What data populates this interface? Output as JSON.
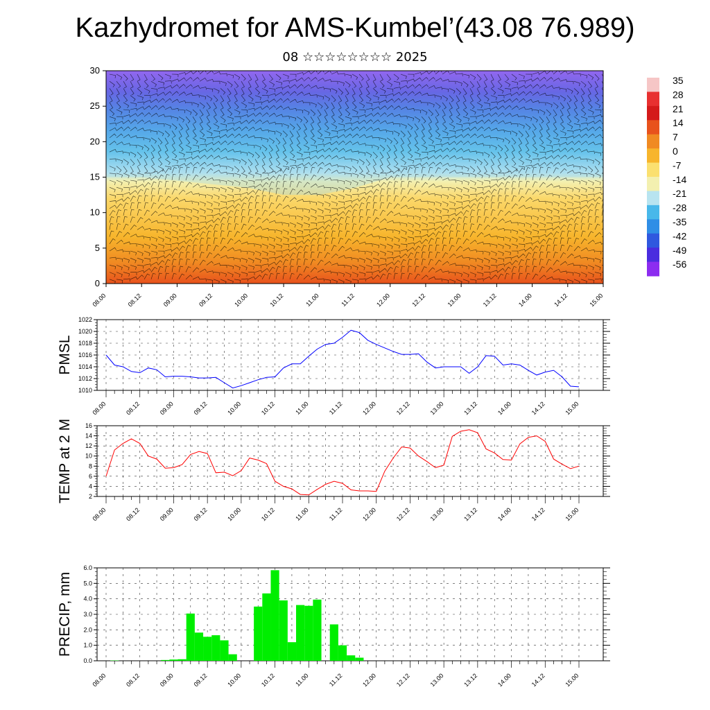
{
  "title": "Kazhydromet for AMS-Kumbel’(43.08 76.989)",
  "subtitle": "08 ☆☆☆☆☆☆☆☆ 2025",
  "colorbar": {
    "labels": [
      "35",
      "28",
      "21",
      "14",
      "7",
      "0",
      "-7",
      "-14",
      "-21",
      "-28",
      "-35",
      "-42",
      "-49",
      "-56"
    ],
    "colors": [
      "#f6c6c6",
      "#e83030",
      "#d41a1a",
      "#e8521c",
      "#f08a22",
      "#f7b52c",
      "#fbe070",
      "#f3f0b0",
      "#b8e4f0",
      "#48b8ea",
      "#2f8ee6",
      "#2f58df",
      "#4a2cdf",
      "#8c2cf0"
    ]
  },
  "time_ticks": [
    "08.00",
    "08.12",
    "09.00",
    "09.12",
    "10.00",
    "10.12",
    "11.00",
    "11.12",
    "12.00",
    "12.12",
    "13.00",
    "13.12",
    "14.00",
    "14.12",
    "15.00"
  ],
  "chart_data": [
    {
      "type": "heatmap",
      "name": "temperature-wind cross-section",
      "yticks": [
        0,
        5,
        10,
        15,
        20,
        25,
        30
      ],
      "ylim": [
        0,
        30
      ],
      "colorbar_range": [
        -56,
        35
      ],
      "freezing_level_approx_km": [
        15,
        15,
        14.5,
        14,
        13.5,
        12.5,
        12.5,
        13.5,
        15,
        15,
        15,
        15,
        15,
        15,
        15
      ]
    },
    {
      "type": "line",
      "ylabel": "PMSL",
      "ylim": [
        1010,
        1022
      ],
      "yticks": [
        "1022",
        "1020",
        "1018",
        "1016",
        "1014",
        "1012",
        "1010"
      ],
      "color": "#0000ff",
      "values": [
        1016,
        1014.3,
        1014,
        1013.2,
        1013,
        1013.8,
        1013.5,
        1012.3,
        1012.4,
        1012.4,
        1012.3,
        1012.1,
        1012.1,
        1012.2,
        1011.3,
        1010.4,
        1010.8,
        1011.3,
        1011.8,
        1012.2,
        1012.3,
        1013.8,
        1014.5,
        1014.5,
        1015.8,
        1017,
        1017.8,
        1018,
        1019,
        1020.2,
        1019.8,
        1018.5,
        1017.8,
        1017.2,
        1016.6,
        1016.1,
        1016.1,
        1016.2,
        1014.8,
        1013.8,
        1014,
        1014,
        1014,
        1012.9,
        1014,
        1015.9,
        1015.8,
        1014.3,
        1014.5,
        1014.3,
        1013.4,
        1012.6,
        1013.1,
        1013.4,
        1012.3,
        1010.7,
        1010.6
      ]
    },
    {
      "type": "line",
      "ylabel": "TEMP at 2 M",
      "ylim": [
        2,
        16
      ],
      "yticks": [
        "16",
        "14",
        "12",
        "10",
        "8",
        "6",
        "4",
        "2"
      ],
      "color": "#ff0000",
      "values": [
        6,
        11.2,
        12.5,
        13.4,
        12.5,
        10,
        9.4,
        7.6,
        7.7,
        8.3,
        10.3,
        10.9,
        10.5,
        6.7,
        6.8,
        6.1,
        7.1,
        9.6,
        9.2,
        8.5,
        5,
        4,
        3.5,
        2.4,
        2.3,
        3.4,
        4.4,
        5,
        4.6,
        3.3,
        3.1,
        3.1,
        3,
        7,
        9.6,
        11.8,
        11.6,
        10,
        8.9,
        7.7,
        8.2,
        13.9,
        14.9,
        15.2,
        14.6,
        11.4,
        10.6,
        9.3,
        9.2,
        12.4,
        13.7,
        14,
        12.9,
        9.4,
        8.4,
        7.5,
        8
      ]
    },
    {
      "type": "bar",
      "ylabel": "PRECIP, mm",
      "ylim": [
        0,
        6
      ],
      "yticks": [
        "6.0",
        "5.0",
        "4.0",
        "3.0",
        "2.0",
        "1.0",
        "0.0"
      ],
      "color": "#00ee00",
      "values": [
        0,
        0.02,
        0,
        0,
        0,
        0,
        0,
        0.05,
        0.08,
        0.1,
        3.05,
        1.82,
        1.55,
        1.65,
        1.32,
        0.42,
        0,
        0,
        3.5,
        4.35,
        5.85,
        3.9,
        1.2,
        3.6,
        3.55,
        3.95,
        0,
        2.35,
        1.0,
        0.35,
        0.2,
        0,
        0,
        0,
        0,
        0,
        0,
        0,
        0,
        0,
        0,
        0,
        0,
        0,
        0,
        0,
        0,
        0,
        0,
        0,
        0,
        0,
        0,
        0,
        0,
        0,
        0
      ]
    }
  ]
}
